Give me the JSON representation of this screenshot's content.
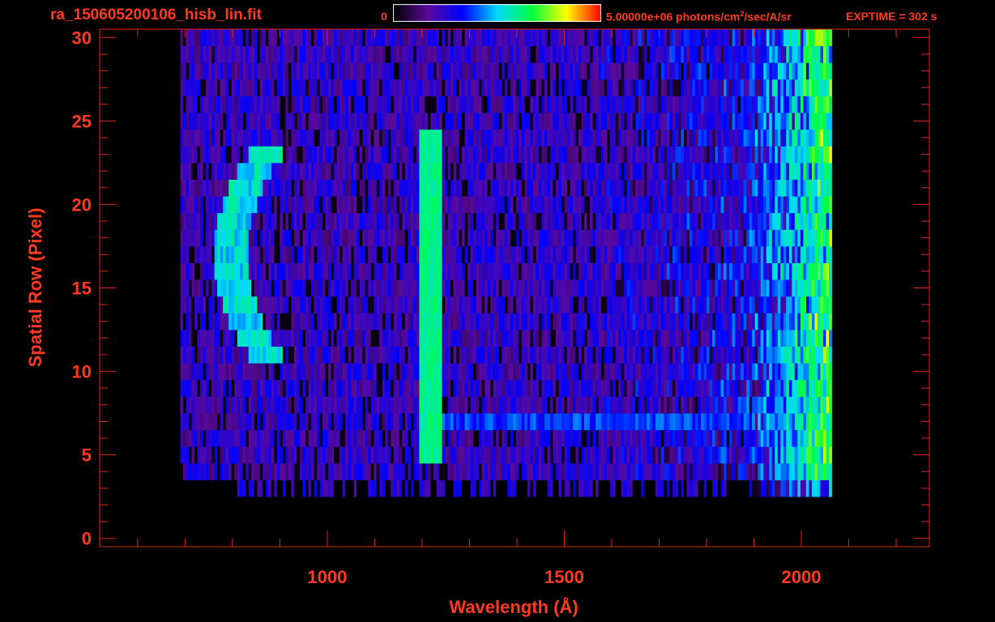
{
  "header": {
    "filename": "ra_150605200106_hisb_lin.fit",
    "colorbar_min_label": "0",
    "colorbar_max_value": "5.00000e+06 photons/cm",
    "colorbar_max_exp": "2",
    "colorbar_max_suffix": "/sec/A/sr",
    "exptime": "EXPTIME = 302 s"
  },
  "colors": {
    "text": "#ff3a1f",
    "axis": "#e0281a",
    "background": "#000000"
  },
  "chart_data": {
    "type": "heatmap",
    "title": "",
    "xlabel": "Wavelength (Å)",
    "ylabel": "Spatial Row (Pixel)",
    "xlim": [
      520,
      2270
    ],
    "ylim": [
      -0.5,
      30.5
    ],
    "x_ticks": [
      1000,
      1500,
      2000
    ],
    "x_tick_labels": [
      "1000",
      "1500",
      "2000"
    ],
    "y_ticks": [
      0,
      5,
      10,
      15,
      20,
      25,
      30
    ],
    "y_tick_labels": [
      "0",
      "5",
      "10",
      "15",
      "20",
      "25",
      "30"
    ],
    "colorscale": {
      "min": 0,
      "max": 5000000,
      "unit": "photons/cm2/sec/A/sr",
      "stops": [
        "#000000",
        "#5a0a9a",
        "#0000ff",
        "#00d8ff",
        "#00ff40",
        "#ffff00",
        "#ff0000"
      ]
    },
    "data_extent": {
      "x_range": [
        690,
        2060
      ],
      "rows_full": [
        4,
        30
      ],
      "rows_partial": [
        3,
        4
      ]
    },
    "features": [
      {
        "label": "Lyman-alpha line",
        "x": 1216,
        "rows": [
          5,
          24
        ],
        "level": 0.62
      },
      {
        "label": "Arc feature",
        "x_range": [
          760,
          900
        ],
        "rows": [
          11,
          23
        ],
        "level": 0.55
      },
      {
        "label": "Horizontal continuum streak",
        "x_range": [
          1216,
          1900
        ],
        "rows": [
          7,
          8
        ],
        "level": 0.38
      }
    ]
  }
}
